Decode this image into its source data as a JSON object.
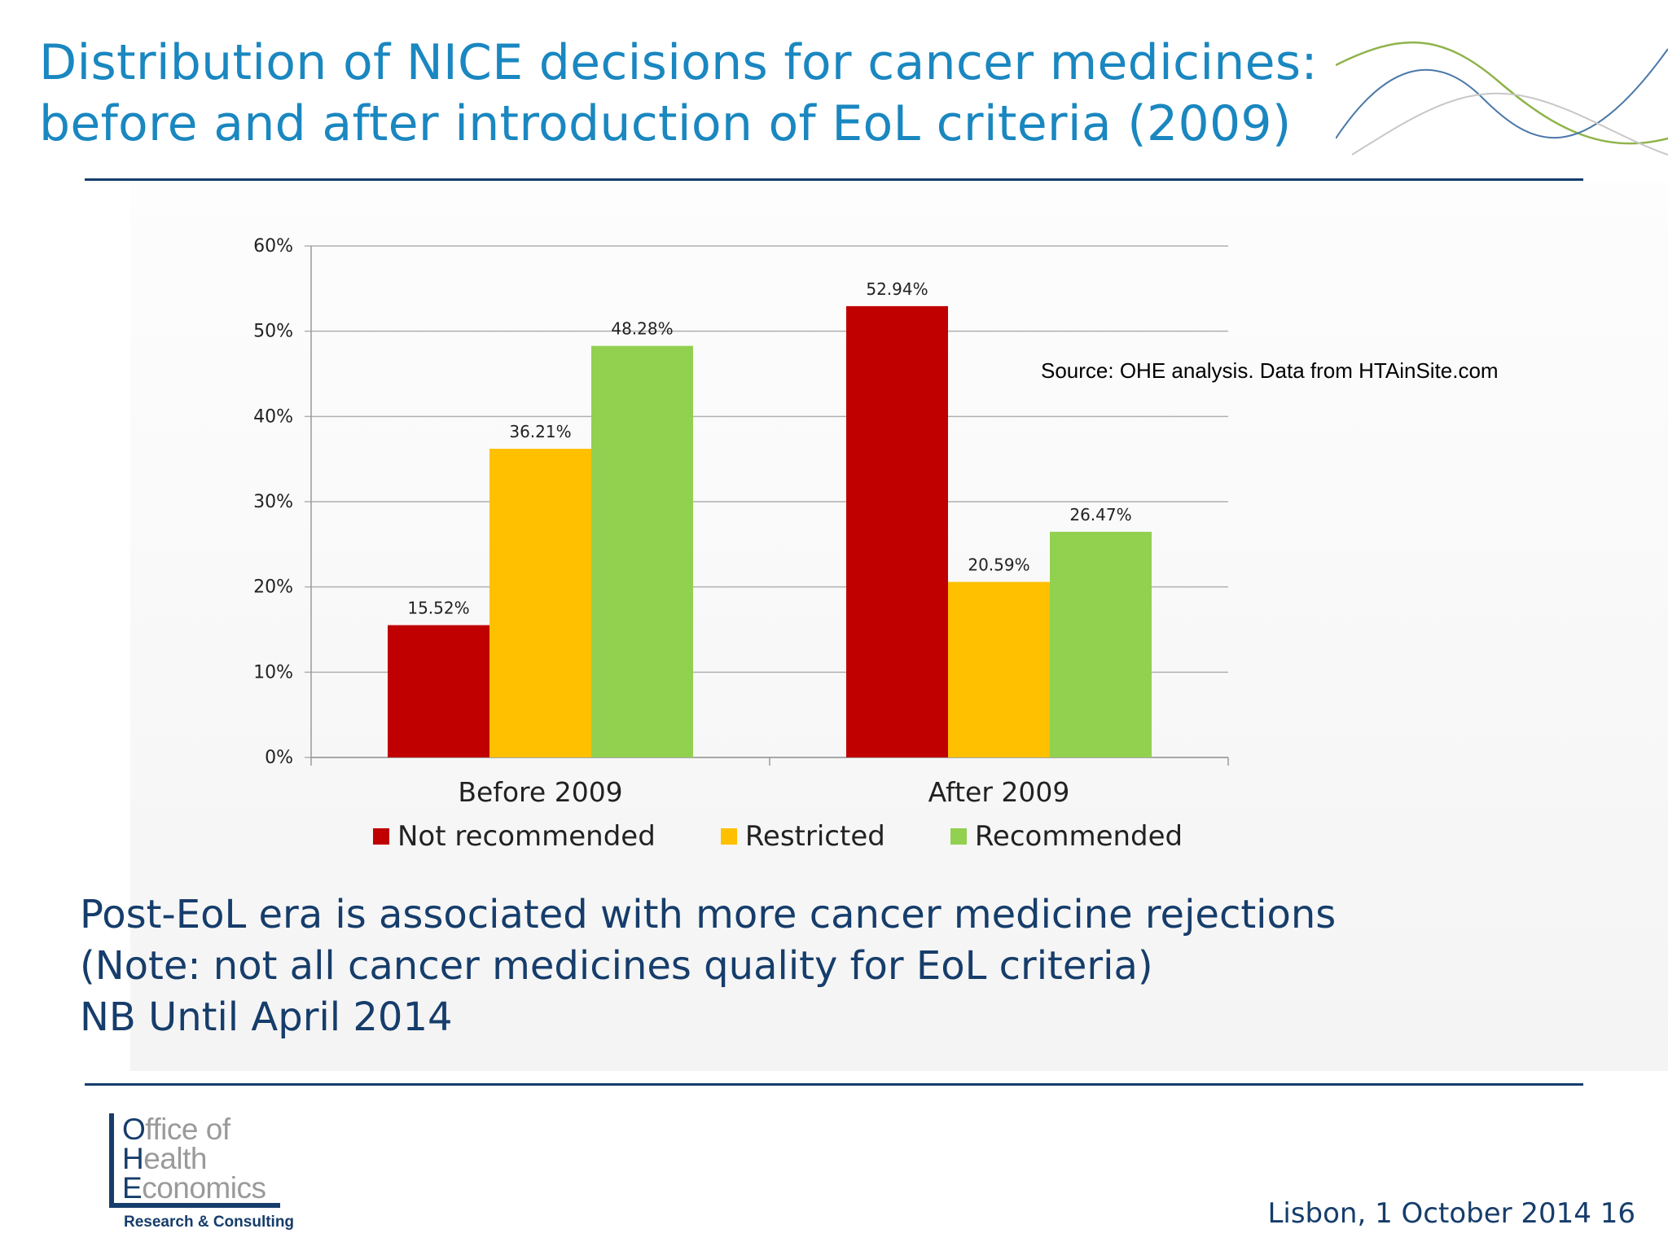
{
  "slide": {
    "title_lines": [
      "Distribution of NICE decisions for cancer medicines:",
      "before and after introduction of EoL criteria (2009)"
    ],
    "source_note": "Source:  OHE analysis. Data from HTAinSite.com",
    "notes": [
      "Post-EoL era is associated with more cancer medicine rejections",
      "(Note: not all cancer medicines quality for EoL criteria)",
      "NB Until April 2014"
    ],
    "footer": "Lisbon, 1 October 2014 16",
    "colors": {
      "title": "#1a87c0",
      "navy": "#163d6b"
    }
  },
  "logo": {
    "lines": [
      {
        "cap": "O",
        "rest": "ffice of"
      },
      {
        "cap": "H",
        "rest": "ealth"
      },
      {
        "cap": "E",
        "rest": "conomics"
      }
    ],
    "tagline": "Research & Consulting"
  },
  "chart_data": {
    "type": "bar",
    "categories": [
      "Before 2009",
      "After 2009"
    ],
    "series": [
      {
        "name": "Not recommended",
        "color": "#c00000",
        "values": [
          15.52,
          52.94
        ]
      },
      {
        "name": "Restricted",
        "color": "#ffc000",
        "values": [
          36.21,
          20.59
        ]
      },
      {
        "name": "Recommended",
        "color": "#92d050",
        "values": [
          48.28,
          26.47
        ]
      }
    ],
    "data_labels": [
      [
        "15.52%",
        "52.94%"
      ],
      [
        "36.21%",
        "20.59%"
      ],
      [
        "48.28%",
        "26.47%"
      ]
    ],
    "ylim": [
      0,
      60
    ],
    "yticks": [
      0,
      10,
      20,
      30,
      40,
      50,
      60
    ],
    "ytick_labels": [
      "0%",
      "10%",
      "20%",
      "30%",
      "40%",
      "50%",
      "60%"
    ],
    "grid": true,
    "legend_position": "bottom"
  }
}
